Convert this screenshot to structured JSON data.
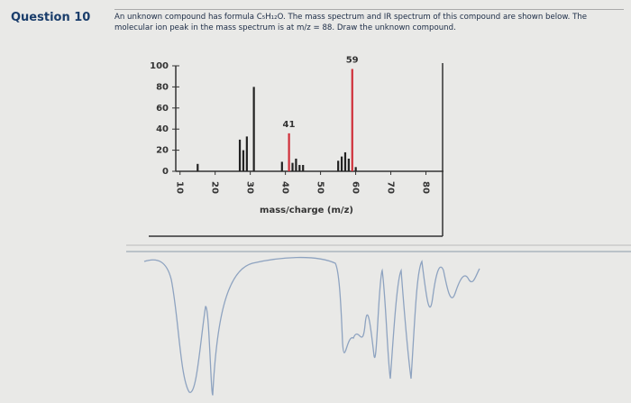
{
  "question": {
    "label": "Question 10",
    "text": "An unknown compound has formula C₅H₁₂O. The mass spectrum and IR spectrum of this compound are shown below. The molecular ion peak in the mass spectrum is at m/z = 88. Draw the unknown compound."
  },
  "chart_data": {
    "type": "bar",
    "xlabel": "mass/charge (m/z)",
    "x": [
      15,
      27,
      28,
      29,
      31,
      39,
      41,
      42,
      43,
      44,
      45,
      55,
      56,
      57,
      58,
      59,
      60
    ],
    "values": [
      7,
      30,
      20,
      33,
      80,
      9,
      36,
      8,
      12,
      6,
      6,
      10,
      14,
      18,
      12,
      97,
      4
    ],
    "colors": [
      "#222",
      "#222",
      "#222",
      "#222",
      "#222",
      "#222",
      "#d0303a",
      "#222",
      "#222",
      "#222",
      "#222",
      "#222",
      "#222",
      "#222",
      "#222",
      "#d0303a",
      "#222"
    ],
    "peak_labels": [
      null,
      null,
      null,
      null,
      null,
      null,
      "41",
      null,
      null,
      null,
      null,
      null,
      null,
      null,
      null,
      "59",
      null
    ],
    "xlim": [
      7,
      85
    ],
    "xticks": [
      10,
      20,
      30,
      40,
      50,
      60,
      70,
      80
    ],
    "ylim": [
      0,
      100
    ],
    "yticks": [
      0,
      20,
      40,
      60,
      80,
      100
    ]
  }
}
